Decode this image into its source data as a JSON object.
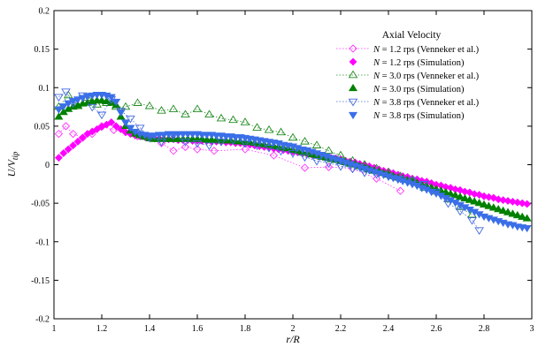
{
  "chart_data": {
    "type": "scatter",
    "title": "",
    "xlabel": "r/R",
    "ylabel": "U/V_tip",
    "xlim": [
      1,
      3
    ],
    "ylim": [
      -0.2,
      0.2
    ],
    "x_ticks": [
      "1",
      "1.2",
      "1.4",
      "1.6",
      "1.8",
      "2",
      "2.2",
      "2.4",
      "2.6",
      "2.8",
      "3"
    ],
    "y_ticks": [
      "0.2",
      "0.15",
      "0.1",
      "0.05",
      "0",
      "-0.05",
      "-0.1",
      "-0.15",
      "-0.2"
    ],
    "grid": false,
    "legend": {
      "title": "Axial Velocity",
      "placement": "top-right"
    },
    "series": [
      {
        "name": "N = 1.2 rps (Venneker et al.)",
        "name_italic": "N",
        "name_rest": " = 1.2 rps (Venneker et al.)",
        "color": "#ff33ff",
        "marker": "diamond-open",
        "dotted_line": true,
        "x": [
          1.02,
          1.05,
          1.08,
          1.12,
          1.16,
          1.2,
          1.25,
          1.3,
          1.35,
          1.4,
          1.45,
          1.5,
          1.55,
          1.6,
          1.67,
          1.8,
          1.92,
          2.05,
          2.15,
          2.25,
          2.35,
          2.45
        ],
        "y": [
          0.04,
          0.05,
          0.04,
          0.035,
          0.04,
          0.05,
          0.045,
          0.045,
          0.037,
          0.035,
          0.028,
          0.018,
          0.023,
          0.02,
          0.018,
          0.02,
          0.012,
          -0.004,
          -0.003,
          -0.005,
          -0.018,
          -0.034
        ]
      },
      {
        "name": "N = 1.2 rps (Simulation)",
        "name_italic": "N",
        "name_rest": " = 1.2 rps (Simulation)",
        "color": "#ff00ff",
        "marker": "diamond-filled",
        "dotted_line": false,
        "x": [
          1.02,
          1.04,
          1.06,
          1.08,
          1.1,
          1.12,
          1.14,
          1.16,
          1.18,
          1.2,
          1.22,
          1.24,
          1.26,
          1.28,
          1.3,
          1.32,
          1.34,
          1.36,
          1.38,
          1.4,
          1.42,
          1.44,
          1.46,
          1.48,
          1.5,
          1.52,
          1.54,
          1.56,
          1.58,
          1.6,
          1.62,
          1.64,
          1.66,
          1.68,
          1.7,
          1.72,
          1.74,
          1.76,
          1.78,
          1.8,
          1.82,
          1.84,
          1.86,
          1.88,
          1.9,
          1.92,
          1.94,
          1.96,
          1.98,
          2.0,
          2.02,
          2.04,
          2.06,
          2.08,
          2.1,
          2.12,
          2.14,
          2.16,
          2.18,
          2.2,
          2.22,
          2.24,
          2.26,
          2.28,
          2.3,
          2.32,
          2.34,
          2.36,
          2.38,
          2.4,
          2.42,
          2.44,
          2.46,
          2.48,
          2.5,
          2.52,
          2.54,
          2.56,
          2.58,
          2.6,
          2.62,
          2.64,
          2.66,
          2.68,
          2.7,
          2.72,
          2.74,
          2.76,
          2.78,
          2.8,
          2.82,
          2.84,
          2.86,
          2.88,
          2.9,
          2.92,
          2.94,
          2.96,
          2.98
        ],
        "y": [
          0.009,
          0.015,
          0.02,
          0.025,
          0.03,
          0.035,
          0.04,
          0.043,
          0.046,
          0.049,
          0.052,
          0.055,
          0.05,
          0.046,
          0.042,
          0.04,
          0.038,
          0.037,
          0.036,
          0.035,
          0.034,
          0.034,
          0.033,
          0.033,
          0.033,
          0.032,
          0.032,
          0.032,
          0.031,
          0.031,
          0.031,
          0.031,
          0.03,
          0.03,
          0.03,
          0.029,
          0.029,
          0.028,
          0.028,
          0.027,
          0.026,
          0.025,
          0.024,
          0.023,
          0.022,
          0.021,
          0.02,
          0.019,
          0.018,
          0.017,
          0.016,
          0.015,
          0.014,
          0.013,
          0.012,
          0.011,
          0.01,
          0.009,
          0.008,
          0.007,
          0.005,
          0.004,
          0.003,
          0.001,
          0.0,
          -0.002,
          -0.004,
          -0.006,
          -0.008,
          -0.009,
          -0.011,
          -0.013,
          -0.015,
          -0.016,
          -0.018,
          -0.019,
          -0.021,
          -0.022,
          -0.024,
          -0.026,
          -0.027,
          -0.029,
          -0.03,
          -0.032,
          -0.033,
          -0.035,
          -0.036,
          -0.038,
          -0.039,
          -0.041,
          -0.042,
          -0.043,
          -0.045,
          -0.046,
          -0.047,
          -0.048,
          -0.049,
          -0.05,
          -0.051
        ]
      },
      {
        "name": "N = 3.0 rps (Venneker et al.)",
        "name_italic": "N",
        "name_rest": " = 3.0 rps (Venneker et al.)",
        "color": "#228b22",
        "marker": "triangle-up-open",
        "dotted_line": true,
        "x": [
          1.02,
          1.06,
          1.1,
          1.14,
          1.18,
          1.22,
          1.26,
          1.3,
          1.35,
          1.4,
          1.45,
          1.5,
          1.55,
          1.6,
          1.65,
          1.7,
          1.75,
          1.8,
          1.85,
          1.9,
          1.95,
          2.0,
          2.05,
          2.1,
          2.15,
          2.2,
          2.25,
          2.3,
          2.35,
          2.4,
          2.45,
          2.5,
          2.55,
          2.6,
          2.65,
          2.7,
          2.75
        ],
        "y": [
          0.075,
          0.09,
          0.076,
          0.087,
          0.078,
          0.08,
          0.075,
          0.075,
          0.08,
          0.076,
          0.07,
          0.072,
          0.065,
          0.072,
          0.065,
          0.06,
          0.058,
          0.055,
          0.048,
          0.045,
          0.042,
          0.035,
          0.03,
          0.025,
          0.018,
          0.012,
          0.005,
          0.0,
          -0.005,
          -0.01,
          -0.015,
          -0.02,
          -0.03,
          -0.035,
          -0.045,
          -0.055,
          -0.065
        ]
      },
      {
        "name": "N = 3.0 rps (Simulation)",
        "name_italic": "N",
        "name_rest": " = 3.0 rps (Simulation)",
        "color": "#008000",
        "marker": "triangle-up-filled",
        "dotted_line": false,
        "x": [
          1.02,
          1.04,
          1.06,
          1.08,
          1.1,
          1.12,
          1.14,
          1.16,
          1.18,
          1.2,
          1.22,
          1.24,
          1.26,
          1.28,
          1.3,
          1.32,
          1.34,
          1.36,
          1.38,
          1.4,
          1.42,
          1.44,
          1.46,
          1.48,
          1.5,
          1.52,
          1.54,
          1.56,
          1.58,
          1.6,
          1.62,
          1.64,
          1.66,
          1.68,
          1.7,
          1.72,
          1.74,
          1.76,
          1.78,
          1.8,
          1.82,
          1.84,
          1.86,
          1.88,
          1.9,
          1.92,
          1.94,
          1.96,
          1.98,
          2.0,
          2.02,
          2.04,
          2.06,
          2.08,
          2.1,
          2.12,
          2.14,
          2.16,
          2.18,
          2.2,
          2.22,
          2.24,
          2.26,
          2.28,
          2.3,
          2.32,
          2.34,
          2.36,
          2.38,
          2.4,
          2.42,
          2.44,
          2.46,
          2.48,
          2.5,
          2.52,
          2.54,
          2.56,
          2.58,
          2.6,
          2.62,
          2.64,
          2.66,
          2.68,
          2.7,
          2.72,
          2.74,
          2.76,
          2.78,
          2.8,
          2.82,
          2.84,
          2.86,
          2.88,
          2.9,
          2.92,
          2.94,
          2.96,
          2.98
        ],
        "y": [
          0.062,
          0.068,
          0.072,
          0.075,
          0.077,
          0.079,
          0.08,
          0.082,
          0.083,
          0.083,
          0.082,
          0.08,
          0.077,
          0.062,
          0.05,
          0.044,
          0.04,
          0.038,
          0.036,
          0.034,
          0.033,
          0.033,
          0.033,
          0.033,
          0.033,
          0.033,
          0.033,
          0.033,
          0.033,
          0.033,
          0.033,
          0.032,
          0.032,
          0.032,
          0.031,
          0.031,
          0.031,
          0.03,
          0.03,
          0.029,
          0.029,
          0.028,
          0.027,
          0.026,
          0.025,
          0.024,
          0.023,
          0.022,
          0.021,
          0.019,
          0.018,
          0.016,
          0.015,
          0.013,
          0.012,
          0.01,
          0.009,
          0.007,
          0.006,
          0.004,
          0.003,
          0.001,
          0.0,
          -0.002,
          -0.004,
          -0.006,
          -0.008,
          -0.009,
          -0.011,
          -0.013,
          -0.015,
          -0.017,
          -0.018,
          -0.02,
          -0.022,
          -0.024,
          -0.026,
          -0.028,
          -0.03,
          -0.032,
          -0.034,
          -0.036,
          -0.038,
          -0.04,
          -0.042,
          -0.044,
          -0.046,
          -0.048,
          -0.05,
          -0.052,
          -0.054,
          -0.056,
          -0.058,
          -0.06,
          -0.062,
          -0.064,
          -0.066,
          -0.068,
          -0.07
        ]
      },
      {
        "name": "N = 3.8 rps (Venneker et al.)",
        "name_italic": "N",
        "name_rest": " = 3.8 rps (Venneker et al.)",
        "color": "#4169e1",
        "marker": "triangle-down-open",
        "dotted_line": true,
        "x": [
          1.02,
          1.05,
          1.08,
          1.12,
          1.16,
          1.2,
          1.24,
          1.28,
          1.32,
          1.36,
          1.4,
          1.45,
          1.5,
          1.55,
          1.6,
          1.65,
          1.7,
          1.75,
          1.8,
          1.85,
          1.9,
          1.95,
          2.0,
          2.05,
          2.1,
          2.15,
          2.2,
          2.25,
          2.3,
          2.35,
          2.4,
          2.45,
          2.5,
          2.55,
          2.6,
          2.65,
          2.7,
          2.75,
          2.78
        ],
        "y": [
          0.088,
          0.095,
          0.08,
          0.09,
          0.075,
          0.065,
          0.085,
          0.07,
          0.06,
          0.048,
          0.035,
          0.03,
          0.038,
          0.03,
          0.028,
          0.025,
          0.03,
          0.032,
          0.028,
          0.025,
          0.022,
          0.018,
          0.015,
          0.01,
          0.005,
          0.002,
          -0.002,
          -0.005,
          -0.01,
          -0.012,
          -0.015,
          -0.018,
          -0.02,
          -0.025,
          -0.035,
          -0.05,
          -0.06,
          -0.072,
          -0.085
        ]
      },
      {
        "name": "N = 3.8 rps (Simulation)",
        "name_italic": "N",
        "name_rest": " = 3.8 rps (Simulation)",
        "color": "#3b6fe8",
        "marker": "triangle-down-filled",
        "dotted_line": false,
        "x": [
          1.02,
          1.04,
          1.06,
          1.08,
          1.1,
          1.12,
          1.14,
          1.16,
          1.18,
          1.2,
          1.22,
          1.24,
          1.26,
          1.28,
          1.3,
          1.32,
          1.34,
          1.36,
          1.38,
          1.4,
          1.42,
          1.44,
          1.46,
          1.48,
          1.5,
          1.52,
          1.54,
          1.56,
          1.58,
          1.6,
          1.62,
          1.64,
          1.66,
          1.68,
          1.7,
          1.72,
          1.74,
          1.76,
          1.78,
          1.8,
          1.82,
          1.84,
          1.86,
          1.88,
          1.9,
          1.92,
          1.94,
          1.96,
          1.98,
          2.0,
          2.02,
          2.04,
          2.06,
          2.08,
          2.1,
          2.12,
          2.14,
          2.16,
          2.18,
          2.2,
          2.22,
          2.24,
          2.26,
          2.28,
          2.3,
          2.32,
          2.34,
          2.36,
          2.38,
          2.4,
          2.42,
          2.44,
          2.46,
          2.48,
          2.5,
          2.52,
          2.54,
          2.56,
          2.58,
          2.6,
          2.62,
          2.64,
          2.66,
          2.68,
          2.7,
          2.72,
          2.74,
          2.76,
          2.78,
          2.8,
          2.82,
          2.84,
          2.86,
          2.88,
          2.9,
          2.92,
          2.94,
          2.96,
          2.98
        ],
        "y": [
          0.072,
          0.076,
          0.08,
          0.083,
          0.085,
          0.087,
          0.089,
          0.09,
          0.091,
          0.091,
          0.09,
          0.088,
          0.082,
          0.068,
          0.055,
          0.048,
          0.043,
          0.04,
          0.039,
          0.038,
          0.038,
          0.039,
          0.039,
          0.04,
          0.04,
          0.04,
          0.04,
          0.04,
          0.04,
          0.04,
          0.039,
          0.039,
          0.039,
          0.038,
          0.038,
          0.037,
          0.037,
          0.036,
          0.036,
          0.035,
          0.034,
          0.033,
          0.032,
          0.031,
          0.03,
          0.029,
          0.028,
          0.026,
          0.025,
          0.024,
          0.022,
          0.02,
          0.019,
          0.017,
          0.015,
          0.013,
          0.011,
          0.009,
          0.007,
          0.005,
          0.003,
          0.001,
          -0.001,
          -0.003,
          -0.005,
          -0.007,
          -0.009,
          -0.011,
          -0.013,
          -0.015,
          -0.017,
          -0.019,
          -0.021,
          -0.023,
          -0.025,
          -0.027,
          -0.03,
          -0.032,
          -0.035,
          -0.037,
          -0.04,
          -0.043,
          -0.046,
          -0.049,
          -0.052,
          -0.055,
          -0.058,
          -0.061,
          -0.064,
          -0.067,
          -0.069,
          -0.071,
          -0.073,
          -0.075,
          -0.077,
          -0.078,
          -0.08,
          -0.081,
          -0.082
        ]
      }
    ]
  }
}
